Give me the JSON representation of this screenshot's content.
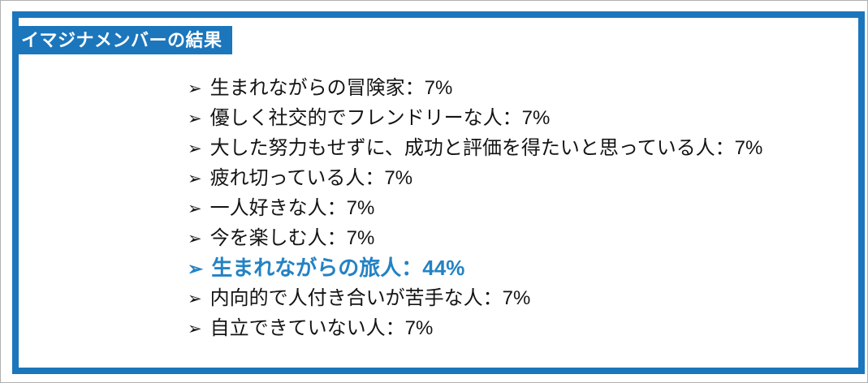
{
  "page": {
    "title_badge": "イマジナメンバーの結果"
  },
  "colors": {
    "frame_blue": "#1b76bc",
    "highlight_blue": "#2382c4",
    "text_color": "#141414",
    "outer_border_gray": "#b0b0b0",
    "badge_text_white": "#ffffff"
  },
  "list": {
    "bullet_glyph": "➢",
    "items": [
      {
        "text": "生まれながらの冒険家：7%",
        "highlighted": false
      },
      {
        "text": "優しく社交的でフレンドリーな人：7%",
        "highlighted": false
      },
      {
        "text": "大した努力もせずに、成功と評価を得たいと思っている人：7%",
        "highlighted": false
      },
      {
        "text": "疲れ切っている人：7%",
        "highlighted": false
      },
      {
        "text": "一人好きな人：7%",
        "highlighted": false
      },
      {
        "text": "今を楽しむ人：7%",
        "highlighted": false
      },
      {
        "text": "生まれながらの旅人：44%",
        "highlighted": true
      },
      {
        "text": "内向的で人付き合いが苦手な人：7%",
        "highlighted": false
      },
      {
        "text": "自立できていない人：7%",
        "highlighted": false
      }
    ]
  }
}
